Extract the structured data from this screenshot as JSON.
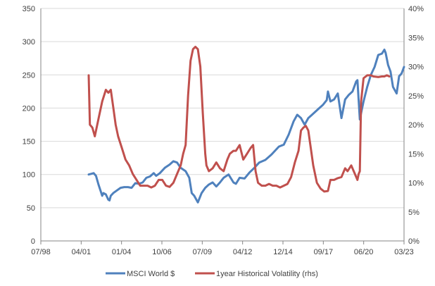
{
  "chart_data": {
    "type": "line",
    "title": "",
    "xlabel": "",
    "ylabel": "",
    "y2label": "",
    "x_range": [
      "1998-07",
      "2023-03"
    ],
    "x_ticks": [
      "07/98",
      "04/01",
      "01/04",
      "10/06",
      "07/09",
      "04/12",
      "12/14",
      "09/17",
      "06/20",
      "03/23"
    ],
    "y_left": {
      "range": [
        0,
        350
      ],
      "ticks": [
        "0",
        "50",
        "100",
        "150",
        "200",
        "250",
        "300",
        "350"
      ]
    },
    "y_right": {
      "range": [
        0,
        40
      ],
      "unit": "%",
      "ticks": [
        "0%",
        "5%",
        "10%",
        "15%",
        "20%",
        "25%",
        "30%",
        "35%",
        "40%"
      ]
    },
    "grid": "horizontal",
    "legend_position": "bottom",
    "series": [
      {
        "name": "MSCI World $",
        "axis": "left",
        "color": "#4F81BD",
        "points": [
          [
            "2001-10",
            100
          ],
          [
            "2001-12",
            101
          ],
          [
            "2002-02",
            102
          ],
          [
            "2002-04",
            98
          ],
          [
            "2002-06",
            85
          ],
          [
            "2002-09",
            68
          ],
          [
            "2002-10",
            72
          ],
          [
            "2002-12",
            70
          ],
          [
            "2003-02",
            62
          ],
          [
            "2003-03",
            61
          ],
          [
            "2003-04",
            68
          ],
          [
            "2003-06",
            72
          ],
          [
            "2003-09",
            76
          ],
          [
            "2003-12",
            80
          ],
          [
            "2004-03",
            81
          ],
          [
            "2004-06",
            81
          ],
          [
            "2004-09",
            80
          ],
          [
            "2004-12",
            87
          ],
          [
            "2005-03",
            86
          ],
          [
            "2005-06",
            88
          ],
          [
            "2005-09",
            95
          ],
          [
            "2005-12",
            97
          ],
          [
            "2006-03",
            102
          ],
          [
            "2006-05",
            98
          ],
          [
            "2006-08",
            102
          ],
          [
            "2006-12",
            110
          ],
          [
            "2007-04",
            115
          ],
          [
            "2007-07",
            120
          ],
          [
            "2007-10",
            118
          ],
          [
            "2008-01",
            110
          ],
          [
            "2008-05",
            105
          ],
          [
            "2008-08",
            95
          ],
          [
            "2008-10",
            72
          ],
          [
            "2008-12",
            68
          ],
          [
            "2009-03",
            58
          ],
          [
            "2009-06",
            72
          ],
          [
            "2009-09",
            80
          ],
          [
            "2009-12",
            85
          ],
          [
            "2010-03",
            88
          ],
          [
            "2010-06",
            82
          ],
          [
            "2010-09",
            88
          ],
          [
            "2010-12",
            95
          ],
          [
            "2011-04",
            100
          ],
          [
            "2011-08",
            88
          ],
          [
            "2011-10",
            86
          ],
          [
            "2012-01",
            95
          ],
          [
            "2012-05",
            94
          ],
          [
            "2012-09",
            103
          ],
          [
            "2013-01",
            110
          ],
          [
            "2013-05",
            118
          ],
          [
            "2013-10",
            122
          ],
          [
            "2014-03",
            130
          ],
          [
            "2014-09",
            142
          ],
          [
            "2015-01",
            145
          ],
          [
            "2015-05",
            160
          ],
          [
            "2015-09",
            180
          ],
          [
            "2015-12",
            190
          ],
          [
            "2016-03",
            185
          ],
          [
            "2016-06",
            175
          ],
          [
            "2016-09",
            185
          ],
          [
            "2016-12",
            190
          ],
          [
            "2017-03",
            195
          ],
          [
            "2017-06",
            200
          ],
          [
            "2017-09",
            205
          ],
          [
            "2017-12",
            212
          ],
          [
            "2018-01",
            225
          ],
          [
            "2018-03",
            210
          ],
          [
            "2018-06",
            213
          ],
          [
            "2018-09",
            222
          ],
          [
            "2018-12",
            185
          ],
          [
            "2019-03",
            213
          ],
          [
            "2019-06",
            220
          ],
          [
            "2019-09",
            225
          ],
          [
            "2019-12",
            240
          ],
          [
            "2020-01",
            242
          ],
          [
            "2020-03",
            183
          ],
          [
            "2020-06",
            210
          ],
          [
            "2020-09",
            232
          ],
          [
            "2020-12",
            250
          ],
          [
            "2021-03",
            262
          ],
          [
            "2021-06",
            280
          ],
          [
            "2021-09",
            282
          ],
          [
            "2021-11",
            288
          ],
          [
            "2021-12",
            283
          ],
          [
            "2022-02",
            265
          ],
          [
            "2022-04",
            255
          ],
          [
            "2022-06",
            232
          ],
          [
            "2022-09",
            222
          ],
          [
            "2022-11",
            248
          ],
          [
            "2023-01",
            252
          ],
          [
            "2023-03",
            262
          ]
        ]
      },
      {
        "name": "1year Historical Volatility (rhs)",
        "axis": "right",
        "color": "#C0504D",
        "points": [
          [
            "2001-10",
            28.5
          ],
          [
            "2001-11",
            20
          ],
          [
            "2002-01",
            19.5
          ],
          [
            "2002-03",
            18
          ],
          [
            "2002-06",
            21
          ],
          [
            "2002-09",
            24
          ],
          [
            "2002-12",
            26
          ],
          [
            "2003-02",
            25.5
          ],
          [
            "2003-04",
            26
          ],
          [
            "2003-06",
            23
          ],
          [
            "2003-08",
            20
          ],
          [
            "2003-10",
            18
          ],
          [
            "2004-01",
            16
          ],
          [
            "2004-04",
            14
          ],
          [
            "2004-07",
            13
          ],
          [
            "2004-10",
            11.5
          ],
          [
            "2005-01",
            10.5
          ],
          [
            "2005-04",
            9.5
          ],
          [
            "2005-07",
            9.5
          ],
          [
            "2005-10",
            9.5
          ],
          [
            "2006-01",
            9.2
          ],
          [
            "2006-04",
            9.5
          ],
          [
            "2006-07",
            10.5
          ],
          [
            "2006-10",
            10.5
          ],
          [
            "2007-01",
            9.5
          ],
          [
            "2007-04",
            9.3
          ],
          [
            "2007-07",
            10
          ],
          [
            "2007-10",
            11.5
          ],
          [
            "2008-01",
            13
          ],
          [
            "2008-03",
            15
          ],
          [
            "2008-05",
            16.5
          ],
          [
            "2008-07",
            25
          ],
          [
            "2008-09",
            31
          ],
          [
            "2008-11",
            33
          ],
          [
            "2009-01",
            33.4
          ],
          [
            "2009-03",
            33
          ],
          [
            "2009-05",
            30
          ],
          [
            "2009-07",
            22
          ],
          [
            "2009-09",
            15
          ],
          [
            "2009-10",
            13
          ],
          [
            "2009-12",
            12
          ],
          [
            "2010-03",
            12.5
          ],
          [
            "2010-06",
            13.5
          ],
          [
            "2010-09",
            12.5
          ],
          [
            "2010-12",
            12
          ],
          [
            "2011-03",
            14
          ],
          [
            "2011-05",
            15
          ],
          [
            "2011-08",
            15.5
          ],
          [
            "2011-10",
            15.5
          ],
          [
            "2012-01",
            16.5
          ],
          [
            "2012-04",
            14
          ],
          [
            "2012-07",
            15
          ],
          [
            "2012-10",
            16
          ],
          [
            "2012-12",
            16.5
          ],
          [
            "2013-02",
            12
          ],
          [
            "2013-04",
            10
          ],
          [
            "2013-07",
            9.5
          ],
          [
            "2013-10",
            9.5
          ],
          [
            "2014-01",
            9.8
          ],
          [
            "2014-04",
            9.5
          ],
          [
            "2014-07",
            9.5
          ],
          [
            "2014-10",
            9.2
          ],
          [
            "2015-01",
            9.5
          ],
          [
            "2015-04",
            9.8
          ],
          [
            "2015-07",
            11
          ],
          [
            "2015-10",
            13.5
          ],
          [
            "2016-01",
            15.5
          ],
          [
            "2016-03",
            19
          ],
          [
            "2016-05",
            19.5
          ],
          [
            "2016-07",
            19.8
          ],
          [
            "2016-09",
            19
          ],
          [
            "2016-11",
            16
          ],
          [
            "2017-01",
            13
          ],
          [
            "2017-04",
            10
          ],
          [
            "2017-07",
            9
          ],
          [
            "2017-10",
            8.5
          ],
          [
            "2018-01",
            8.6
          ],
          [
            "2018-03",
            10.5
          ],
          [
            "2018-06",
            10.5
          ],
          [
            "2018-09",
            10.8
          ],
          [
            "2018-12",
            11
          ],
          [
            "2019-03",
            12.5
          ],
          [
            "2019-05",
            12
          ],
          [
            "2019-08",
            13
          ],
          [
            "2019-11",
            11.5
          ],
          [
            "2020-01",
            10.5
          ],
          [
            "2020-02",
            11.5
          ],
          [
            "2020-03",
            12
          ],
          [
            "2020-04",
            24
          ],
          [
            "2020-06",
            28
          ],
          [
            "2020-09",
            28.5
          ],
          [
            "2020-12",
            28.5
          ],
          [
            "2021-02",
            28.3
          ],
          [
            "2021-06",
            28.2
          ],
          [
            "2021-09",
            28.3
          ],
          [
            "2021-11",
            28.3
          ],
          [
            "2022-01",
            28.5
          ],
          [
            "2022-03",
            28.3
          ]
        ]
      }
    ]
  }
}
